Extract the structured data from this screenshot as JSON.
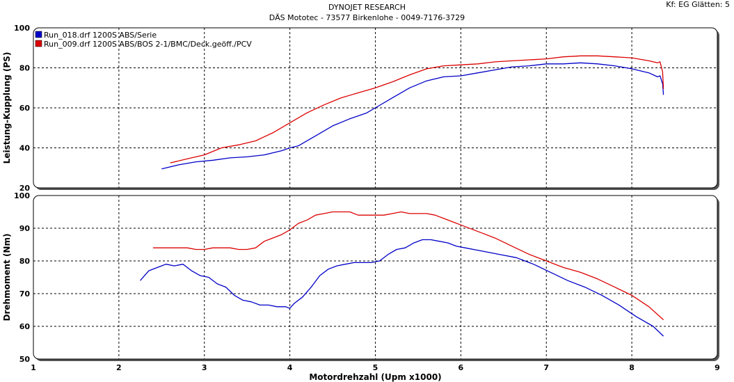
{
  "header": {
    "title": "DYNOJET RESEARCH",
    "subtitle": "DÄS Mototec - 73577 Birkenlohe  - 0049-7176-3729",
    "corner": "Kf: EG  Glätten: 5"
  },
  "colors": {
    "blue": "#0000c8",
    "red": "#dc0000",
    "background": "#ffffff",
    "grid": "#000000"
  },
  "chart_data": [
    {
      "type": "line",
      "ylabel": "Leistung-Kupplung (PS)",
      "xlabel": "",
      "xlim": [
        1,
        9
      ],
      "ylim": [
        20,
        100
      ],
      "yticks": [
        "20",
        "40",
        "60",
        "80",
        "100"
      ],
      "xticks": [
        "1",
        "2",
        "3",
        "4",
        "5",
        "6",
        "7",
        "8",
        "9"
      ],
      "grid": true,
      "legend_position": "top-left",
      "series": [
        {
          "name": "Run_018.drf 1200S ABS/Serie",
          "color": "blue",
          "x": [
            2.5,
            2.7,
            2.9,
            3.1,
            3.3,
            3.5,
            3.7,
            3.9,
            4.0,
            4.1,
            4.3,
            4.5,
            4.7,
            4.9,
            5.0,
            5.2,
            5.4,
            5.6,
            5.8,
            6.0,
            6.2,
            6.4,
            6.6,
            6.8,
            7.0,
            7.2,
            7.4,
            7.6,
            7.8,
            8.0,
            8.2,
            8.3,
            8.33,
            8.36,
            8.37
          ],
          "values": [
            29.5,
            31.5,
            33,
            33.8,
            35,
            35.5,
            36.5,
            38.5,
            40,
            41,
            46,
            51,
            54.5,
            57.5,
            60,
            65,
            70,
            73.5,
            75.5,
            76,
            77.5,
            79,
            80.5,
            81,
            82,
            82,
            82.5,
            82,
            81,
            79.5,
            77.5,
            75.5,
            76,
            72,
            66.5
          ]
        },
        {
          "name": "Run_009.drf 1200S ABS/BOS 2-1/BMC/Deck.geöff./PCV",
          "color": "red",
          "x": [
            2.6,
            2.8,
            3.0,
            3.2,
            3.4,
            3.6,
            3.8,
            4.0,
            4.2,
            4.4,
            4.6,
            4.8,
            5.0,
            5.2,
            5.4,
            5.6,
            5.8,
            6.0,
            6.2,
            6.4,
            6.6,
            6.8,
            7.0,
            7.2,
            7.4,
            7.6,
            7.8,
            8.0,
            8.2,
            8.3,
            8.33,
            8.36,
            8.37
          ],
          "values": [
            32.5,
            34.5,
            36.5,
            40,
            41.5,
            43.5,
            47.5,
            52.5,
            57.5,
            61.5,
            65,
            67.5,
            70,
            73,
            76.5,
            79.5,
            81,
            81.5,
            82,
            83,
            83.5,
            84,
            84.5,
            85.5,
            86,
            86,
            85.5,
            85,
            83.5,
            82.5,
            83,
            78,
            69.5
          ]
        }
      ]
    },
    {
      "type": "line",
      "ylabel": "Drehmoment (Nm)",
      "xlabel": "Motordrehzahl (Upm x1000)",
      "xlim": [
        1,
        9
      ],
      "ylim": [
        50,
        100
      ],
      "yticks": [
        "50",
        "60",
        "70",
        "80",
        "90",
        "100"
      ],
      "xticks": [
        "1",
        "2",
        "3",
        "4",
        "5",
        "6",
        "7",
        "8",
        "9"
      ],
      "grid": true,
      "series": [
        {
          "color": "blue",
          "x": [
            2.25,
            2.35,
            2.45,
            2.55,
            2.65,
            2.75,
            2.85,
            2.95,
            3.05,
            3.15,
            3.25,
            3.35,
            3.45,
            3.55,
            3.65,
            3.75,
            3.85,
            3.95,
            4.0,
            4.05,
            4.15,
            4.25,
            4.35,
            4.45,
            4.55,
            4.65,
            4.75,
            4.85,
            4.95,
            5.05,
            5.15,
            5.25,
            5.35,
            5.45,
            5.55,
            5.65,
            5.75,
            5.85,
            5.95,
            6.05,
            6.25,
            6.45,
            6.65,
            6.85,
            7.05,
            7.25,
            7.45,
            7.65,
            7.85,
            8.05,
            8.25,
            8.37
          ],
          "values": [
            74,
            77,
            78,
            79,
            78.5,
            79,
            77,
            75.5,
            75,
            73,
            72,
            69.5,
            68,
            67.5,
            66.5,
            66.5,
            66,
            66,
            65.5,
            67,
            69,
            72,
            75.5,
            77.5,
            78.5,
            79,
            79.5,
            79.5,
            79.5,
            80,
            82,
            83.5,
            84,
            85.5,
            86.5,
            86.5,
            86,
            85.5,
            84.5,
            84,
            83,
            82,
            81,
            79,
            76.5,
            74,
            72,
            69.5,
            66.5,
            63,
            60,
            57
          ]
        },
        {
          "color": "red",
          "x": [
            2.4,
            2.5,
            2.6,
            2.7,
            2.8,
            2.9,
            3.0,
            3.1,
            3.2,
            3.3,
            3.4,
            3.5,
            3.6,
            3.7,
            3.8,
            3.9,
            4.0,
            4.1,
            4.2,
            4.3,
            4.4,
            4.5,
            4.6,
            4.7,
            4.8,
            4.9,
            5.0,
            5.1,
            5.2,
            5.3,
            5.4,
            5.5,
            5.6,
            5.7,
            5.8,
            5.9,
            6.0,
            6.2,
            6.4,
            6.6,
            6.8,
            7.0,
            7.2,
            7.4,
            7.6,
            7.8,
            8.0,
            8.2,
            8.37
          ],
          "values": [
            84,
            84,
            84,
            84,
            84,
            83.5,
            83.5,
            84,
            84,
            84,
            83.5,
            83.5,
            84,
            86,
            87,
            88,
            89.5,
            91.5,
            92.5,
            94,
            94.5,
            95,
            95,
            95,
            94,
            94,
            94,
            94,
            94.5,
            95,
            94.5,
            94.5,
            94.5,
            94,
            93,
            92,
            91,
            89,
            87,
            84.5,
            82,
            80,
            78,
            76.5,
            74.5,
            72,
            69.5,
            66,
            62
          ]
        }
      ]
    }
  ]
}
